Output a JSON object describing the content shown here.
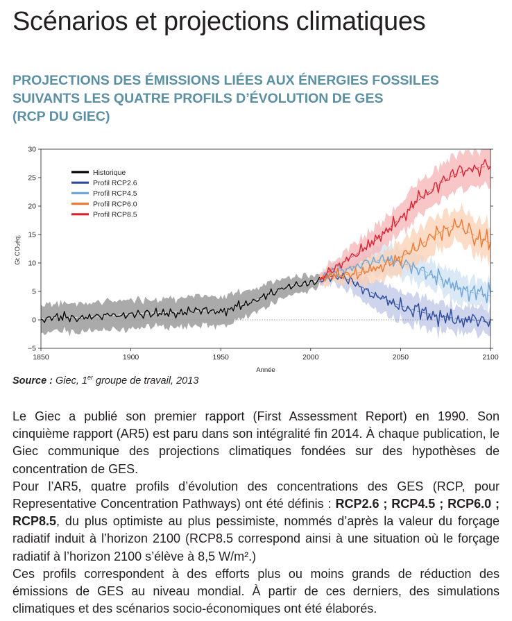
{
  "page": {
    "title": "Scénarios et projections climatiques",
    "subtitle_lines": [
      "PROJECTIONS DES ÉMISSIONS LIÉES AUX ÉNERGIES FOSSILES",
      "SUIVANTS LES QUATRE PROFILS D’ÉVOLUTION DE GES",
      "(RCP DU GIEC)"
    ],
    "source": {
      "label": "Source :",
      "text_before_sup": " Giec, 1",
      "sup": "er",
      "text_after_sup": " groupe de travail, 2013"
    }
  },
  "paragraphs": {
    "p1": "Le Giec a publié son premier rapport (First Assessment Report) en 1990. Son cinquième rapport (AR5) est paru dans son intégralité fin 2014. À chaque publication, le Giec communique des projections climatiques fondées sur des hypothèses de concentration de GES.",
    "p2_a": "Pour l’AR5, quatre profils d’évolution des concentrations des GES (RCP, pour Representative Concentration Pathways) ont été définis : ",
    "p2_rcp26": "RCP2.6",
    "p2_sep1": " ; ",
    "p2_rcp45": "RCP4.5",
    "p2_sep2": " ; ",
    "p2_rcp60": "RCP6.0",
    "p2_sep3": " ; ",
    "p2_rcp85": "RCP8.5",
    "p2_b": ", du plus optimiste au plus pessimiste, nommés d’après la valeur du forçage radiatif induit à l’horizon 2100 (RCP8.5 correspond ainsi à une situation où le forçage radiatif à l’horizon 2100 s’élève à 8,5 W/m².)",
    "p3": "Ces profils correspondent à des efforts plus ou moins grands de réduction des émissions de GES au niveau mondial. À partir de ces derniers, des simulations climatiques et des scénarios socio-économiques ont été élaborés."
  },
  "chart_data": {
    "type": "line",
    "title": "",
    "xlabel": "Année",
    "ylabel": "Gt CO₂éq.",
    "xlim": [
      1850,
      2100
    ],
    "ylim": [
      -5,
      30
    ],
    "x_ticks": [
      1850,
      1900,
      1950,
      2000,
      2050,
      2100
    ],
    "y_ticks": [
      -5,
      0,
      5,
      10,
      15,
      20,
      25,
      30
    ],
    "legend_position": "top-left",
    "colors": {
      "historique": "#000000",
      "historique_band": "#9b9b9b",
      "rcp26": "#2b4a9e",
      "rcp26_band": "#bcc6e4",
      "rcp45": "#6fa6d8",
      "rcp45_band": "#cfe2f3",
      "rcp60": "#ec7a33",
      "rcp60_band": "#fbd0b3",
      "rcp85": "#d92332",
      "rcp85_band": "#f7b3b6",
      "zero_line": "#9a9a9a"
    },
    "series": [
      {
        "name": "Historique",
        "key": "historique",
        "x": [
          1850,
          1860,
          1870,
          1880,
          1890,
          1900,
          1910,
          1920,
          1930,
          1940,
          1950,
          1960,
          1970,
          1980,
          1990,
          2000,
          2005
        ],
        "y": [
          0.2,
          0.5,
          0.4,
          0.6,
          0.8,
          1.0,
          1.2,
          1.3,
          1.4,
          1.6,
          1.5,
          2.5,
          3.5,
          5.0,
          6.0,
          6.5,
          7.0
        ],
        "band": [
          2.5,
          2.5,
          2.5,
          2.5,
          2.5,
          2.5,
          2.5,
          2.5,
          2.5,
          2.5,
          2.6,
          2.5,
          2.2,
          1.8,
          1.5,
          1.3,
          1.0
        ]
      },
      {
        "name": "Profil RCP2.6",
        "key": "rcp26",
        "x": [
          2005,
          2010,
          2020,
          2030,
          2040,
          2050,
          2060,
          2070,
          2080,
          2090,
          2100
        ],
        "y": [
          7.0,
          7.6,
          7.2,
          5.5,
          3.8,
          2.5,
          1.5,
          0.8,
          0.3,
          0.0,
          -0.4
        ],
        "band": [
          1.0,
          1.3,
          1.8,
          2.3,
          2.6,
          2.7,
          2.6,
          2.5,
          2.4,
          2.3,
          2.3
        ]
      },
      {
        "name": "Profil RCP4.5",
        "key": "rcp45",
        "x": [
          2005,
          2010,
          2020,
          2030,
          2040,
          2050,
          2060,
          2070,
          2080,
          2090,
          2100
        ],
        "y": [
          7.0,
          8.0,
          9.0,
          10.0,
          10.5,
          10.0,
          9.0,
          7.5,
          6.0,
          4.8,
          4.3
        ],
        "band": [
          1.0,
          1.3,
          1.8,
          2.2,
          2.4,
          2.5,
          2.5,
          2.4,
          2.4,
          2.4,
          2.4
        ]
      },
      {
        "name": "Profil RCP6.0",
        "key": "rcp60",
        "x": [
          2005,
          2010,
          2020,
          2030,
          2040,
          2050,
          2060,
          2070,
          2080,
          2090,
          2100
        ],
        "y": [
          7.0,
          7.8,
          8.0,
          8.5,
          9.5,
          11.0,
          13.0,
          15.0,
          16.5,
          15.0,
          13.5
        ],
        "band": [
          1.0,
          1.3,
          1.8,
          2.2,
          2.5,
          2.8,
          3.0,
          3.0,
          3.0,
          3.0,
          3.0
        ]
      },
      {
        "name": "Profil RCP8.5",
        "key": "rcp85",
        "x": [
          2005,
          2010,
          2020,
          2030,
          2040,
          2050,
          2060,
          2070,
          2080,
          2090,
          2100
        ],
        "y": [
          7.0,
          8.5,
          10.5,
          12.5,
          15.0,
          18.0,
          21.0,
          23.5,
          25.5,
          26.5,
          27.0
        ],
        "band": [
          1.0,
          1.3,
          1.8,
          2.2,
          2.5,
          2.8,
          3.0,
          3.2,
          3.2,
          3.2,
          3.2
        ]
      }
    ]
  }
}
